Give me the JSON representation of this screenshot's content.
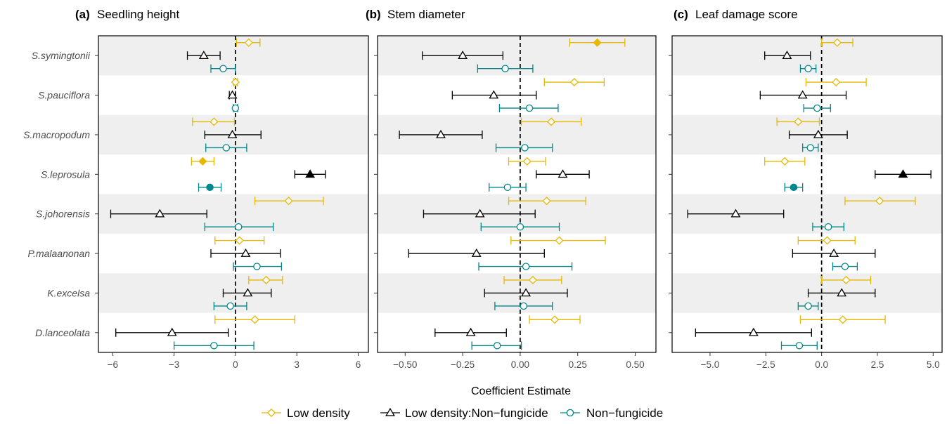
{
  "x_axis_title": "Coefficient Estimate",
  "colors": {
    "low_density": "#E7B800",
    "interaction": "#000000",
    "non_fungicide": "#00868B",
    "band": "#EFEFEF",
    "axis_text": "#4D4D4D"
  },
  "legend": [
    {
      "key": "low_density",
      "label": "Low density",
      "shape": "diamond"
    },
    {
      "key": "interaction",
      "label": "Low density:Non−fungicide",
      "shape": "triangle"
    },
    {
      "key": "non_fungicide",
      "label": "Non−fungicide",
      "shape": "circle"
    }
  ],
  "chart_data": [
    {
      "type": "scatter",
      "panel_label": "(a)",
      "title": "Seedling height",
      "xlabel": "Coefficient Estimate",
      "xlim": [
        -6.7,
        6.5
      ],
      "xticks": [
        -6,
        -3,
        0,
        3,
        6
      ],
      "xtick_labels": [
        "−6",
        "−3",
        "0",
        "3",
        "6"
      ],
      "species": [
        "S.symingtonii",
        "S.pauciflora",
        "S.macropodum",
        "S.leprosula",
        "S.johorensis",
        "P.malaanonan",
        "K.excelsa",
        "D.lanceolata"
      ],
      "series": [
        {
          "name": "Low density",
          "key": "low_density",
          "shape": "diamond",
          "est": [
            0.65,
            0.0,
            -1.05,
            -1.6,
            2.6,
            0.2,
            1.5,
            0.95
          ],
          "lo": [
            0.05,
            -0.1,
            -2.1,
            -2.15,
            0.95,
            -1.0,
            0.65,
            -1.0
          ],
          "hi": [
            1.2,
            0.1,
            -0.05,
            -1.05,
            4.3,
            1.4,
            2.3,
            2.9
          ],
          "filled": [
            false,
            false,
            false,
            true,
            false,
            false,
            false,
            false
          ]
        },
        {
          "name": "Low density:Non−fungicide",
          "key": "interaction",
          "shape": "triangle",
          "est": [
            -1.55,
            -0.15,
            -0.15,
            3.65,
            -3.7,
            0.5,
            0.6,
            -3.1
          ],
          "lo": [
            -2.35,
            -0.3,
            -1.5,
            2.9,
            -6.1,
            -1.2,
            -0.6,
            -5.85
          ],
          "hi": [
            -0.75,
            0.0,
            1.25,
            4.4,
            -1.4,
            2.2,
            1.75,
            -0.35
          ],
          "filled": [
            false,
            false,
            false,
            true,
            false,
            false,
            false,
            false
          ]
        },
        {
          "name": "Non−fungicide",
          "key": "non_fungicide",
          "shape": "circle",
          "est": [
            -0.6,
            0.0,
            -0.45,
            -1.25,
            0.15,
            1.05,
            -0.25,
            -1.05
          ],
          "lo": [
            -1.2,
            -0.1,
            -1.45,
            -1.8,
            -1.5,
            -0.1,
            -1.05,
            -3.0
          ],
          "hi": [
            0.0,
            0.1,
            0.55,
            -0.7,
            1.85,
            2.25,
            0.55,
            0.9
          ],
          "filled": [
            false,
            false,
            false,
            true,
            false,
            false,
            false,
            false
          ]
        }
      ]
    },
    {
      "type": "scatter",
      "panel_label": "(b)",
      "title": "Stem diameter",
      "xlabel": "Coefficient Estimate",
      "xlim": [
        -0.62,
        0.59
      ],
      "xticks": [
        -0.5,
        -0.25,
        0,
        0.25,
        0.5
      ],
      "xtick_labels": [
        "−0.50",
        "−0.25",
        "0.00",
        "0.25",
        "0.50"
      ],
      "species": [
        "S.symingtonii",
        "S.pauciflora",
        "S.macropodum",
        "S.leprosula",
        "S.johorensis",
        "P.malaanonan",
        "K.excelsa",
        "D.lanceolata"
      ],
      "series": [
        {
          "name": "Low density",
          "key": "low_density",
          "shape": "diamond",
          "est": [
            0.335,
            0.235,
            0.135,
            0.03,
            0.115,
            0.17,
            0.055,
            0.15
          ],
          "lo": [
            0.215,
            0.105,
            0.005,
            -0.05,
            -0.05,
            -0.04,
            -0.07,
            0.04
          ],
          "hi": [
            0.455,
            0.365,
            0.265,
            0.11,
            0.285,
            0.37,
            0.18,
            0.26
          ],
          "filled": [
            true,
            false,
            false,
            false,
            false,
            false,
            false,
            false
          ]
        },
        {
          "name": "Low density:Non−fungicide",
          "key": "interaction",
          "shape": "triangle",
          "est": [
            -0.25,
            -0.115,
            -0.345,
            0.185,
            -0.175,
            -0.19,
            0.025,
            -0.215
          ],
          "lo": [
            -0.425,
            -0.295,
            -0.525,
            0.07,
            -0.42,
            -0.485,
            -0.155,
            -0.37
          ],
          "hi": [
            -0.075,
            0.07,
            -0.165,
            0.3,
            0.065,
            0.105,
            0.205,
            -0.06
          ],
          "filled": [
            false,
            false,
            false,
            false,
            false,
            false,
            false,
            false
          ]
        },
        {
          "name": "Non−fungicide",
          "key": "non_fungicide",
          "shape": "circle",
          "est": [
            -0.065,
            0.04,
            0.02,
            -0.055,
            0.0,
            0.025,
            0.015,
            -0.1
          ],
          "lo": [
            -0.185,
            -0.09,
            -0.105,
            -0.135,
            -0.17,
            -0.18,
            -0.11,
            -0.21
          ],
          "hi": [
            0.055,
            0.165,
            0.14,
            0.025,
            0.17,
            0.225,
            0.14,
            0.005
          ],
          "filled": [
            false,
            false,
            false,
            false,
            false,
            false,
            false,
            false
          ]
        }
      ]
    },
    {
      "type": "scatter",
      "panel_label": "(c)",
      "title": "Leaf damage score",
      "xlabel": "Coefficient Estimate",
      "xlim": [
        -6.7,
        5.4
      ],
      "xticks": [
        -5,
        -2.5,
        0,
        2.5,
        5
      ],
      "xtick_labels": [
        "−5.0",
        "−2.5",
        "0.0",
        "2.5",
        "5.0"
      ],
      "species": [
        "S.symingtonii",
        "S.pauciflora",
        "S.macropodum",
        "S.leprosula",
        "S.johorensis",
        "P.malaanonan",
        "K.excelsa",
        "D.lanceolata"
      ],
      "series": [
        {
          "name": "Low density",
          "key": "low_density",
          "shape": "diamond",
          "est": [
            0.7,
            0.65,
            -1.05,
            -1.65,
            2.6,
            0.25,
            1.1,
            0.95
          ],
          "lo": [
            0.0,
            -0.7,
            -2.0,
            -2.55,
            1.05,
            -1.05,
            0.0,
            -0.95
          ],
          "hi": [
            1.4,
            2.0,
            -0.1,
            -0.75,
            4.2,
            1.5,
            2.2,
            2.85
          ],
          "filled": [
            false,
            false,
            false,
            false,
            false,
            false,
            false,
            false
          ]
        },
        {
          "name": "Low density:Non−fungicide",
          "key": "interaction",
          "shape": "triangle",
          "est": [
            -1.55,
            -0.85,
            -0.15,
            3.65,
            -3.85,
            0.55,
            0.9,
            -3.05
          ],
          "lo": [
            -2.55,
            -2.75,
            -1.45,
            2.4,
            -6.0,
            -1.3,
            -0.6,
            -5.65
          ],
          "hi": [
            -0.5,
            1.1,
            1.15,
            4.9,
            -1.7,
            2.4,
            2.4,
            -0.45
          ],
          "filled": [
            false,
            false,
            false,
            true,
            false,
            false,
            false,
            false
          ]
        },
        {
          "name": "Non−fungicide",
          "key": "non_fungicide",
          "shape": "circle",
          "est": [
            -0.6,
            -0.2,
            -0.5,
            -1.25,
            0.3,
            1.05,
            -0.6,
            -1.0
          ],
          "lo": [
            -0.95,
            -0.8,
            -0.85,
            -1.65,
            -0.4,
            0.5,
            -1.05,
            -1.8
          ],
          "hi": [
            -0.25,
            0.4,
            -0.15,
            -0.85,
            1.0,
            1.6,
            -0.15,
            -0.2
          ],
          "filled": [
            false,
            false,
            false,
            true,
            false,
            false,
            false,
            false
          ]
        }
      ]
    }
  ]
}
